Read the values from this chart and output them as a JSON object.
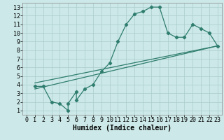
{
  "title": "",
  "xlabel": "Humidex (Indice chaleur)",
  "bg_color": "#cce8e8",
  "line_color": "#2e7d6e",
  "xlim": [
    -0.5,
    23.5
  ],
  "ylim": [
    0.5,
    13.5
  ],
  "xticks": [
    0,
    1,
    2,
    3,
    4,
    5,
    6,
    7,
    8,
    9,
    10,
    11,
    12,
    13,
    14,
    15,
    16,
    17,
    18,
    19,
    20,
    21,
    22,
    23
  ],
  "yticks": [
    1,
    2,
    3,
    4,
    5,
    6,
    7,
    8,
    9,
    10,
    11,
    12,
    13
  ],
  "line1_x": [
    1,
    2,
    3,
    4,
    5,
    5,
    6,
    6,
    7,
    8,
    9,
    10,
    11,
    12,
    13,
    14,
    15,
    16,
    17,
    18,
    19,
    20,
    21,
    22,
    23
  ],
  "line1_y": [
    3.8,
    3.8,
    2.0,
    1.8,
    1.0,
    1.8,
    3.2,
    2.2,
    3.5,
    4.0,
    5.5,
    6.5,
    9.0,
    11.0,
    12.2,
    12.5,
    13.0,
    13.0,
    10.0,
    9.5,
    9.5,
    11.0,
    10.5,
    10.0,
    8.5
  ],
  "line2_x": [
    1,
    23
  ],
  "line2_y": [
    3.5,
    8.5
  ],
  "line3_x": [
    1,
    23
  ],
  "line3_y": [
    4.2,
    8.5
  ],
  "grid_color": "#aacccc",
  "font_size": 6,
  "xlabel_fontsize": 7
}
